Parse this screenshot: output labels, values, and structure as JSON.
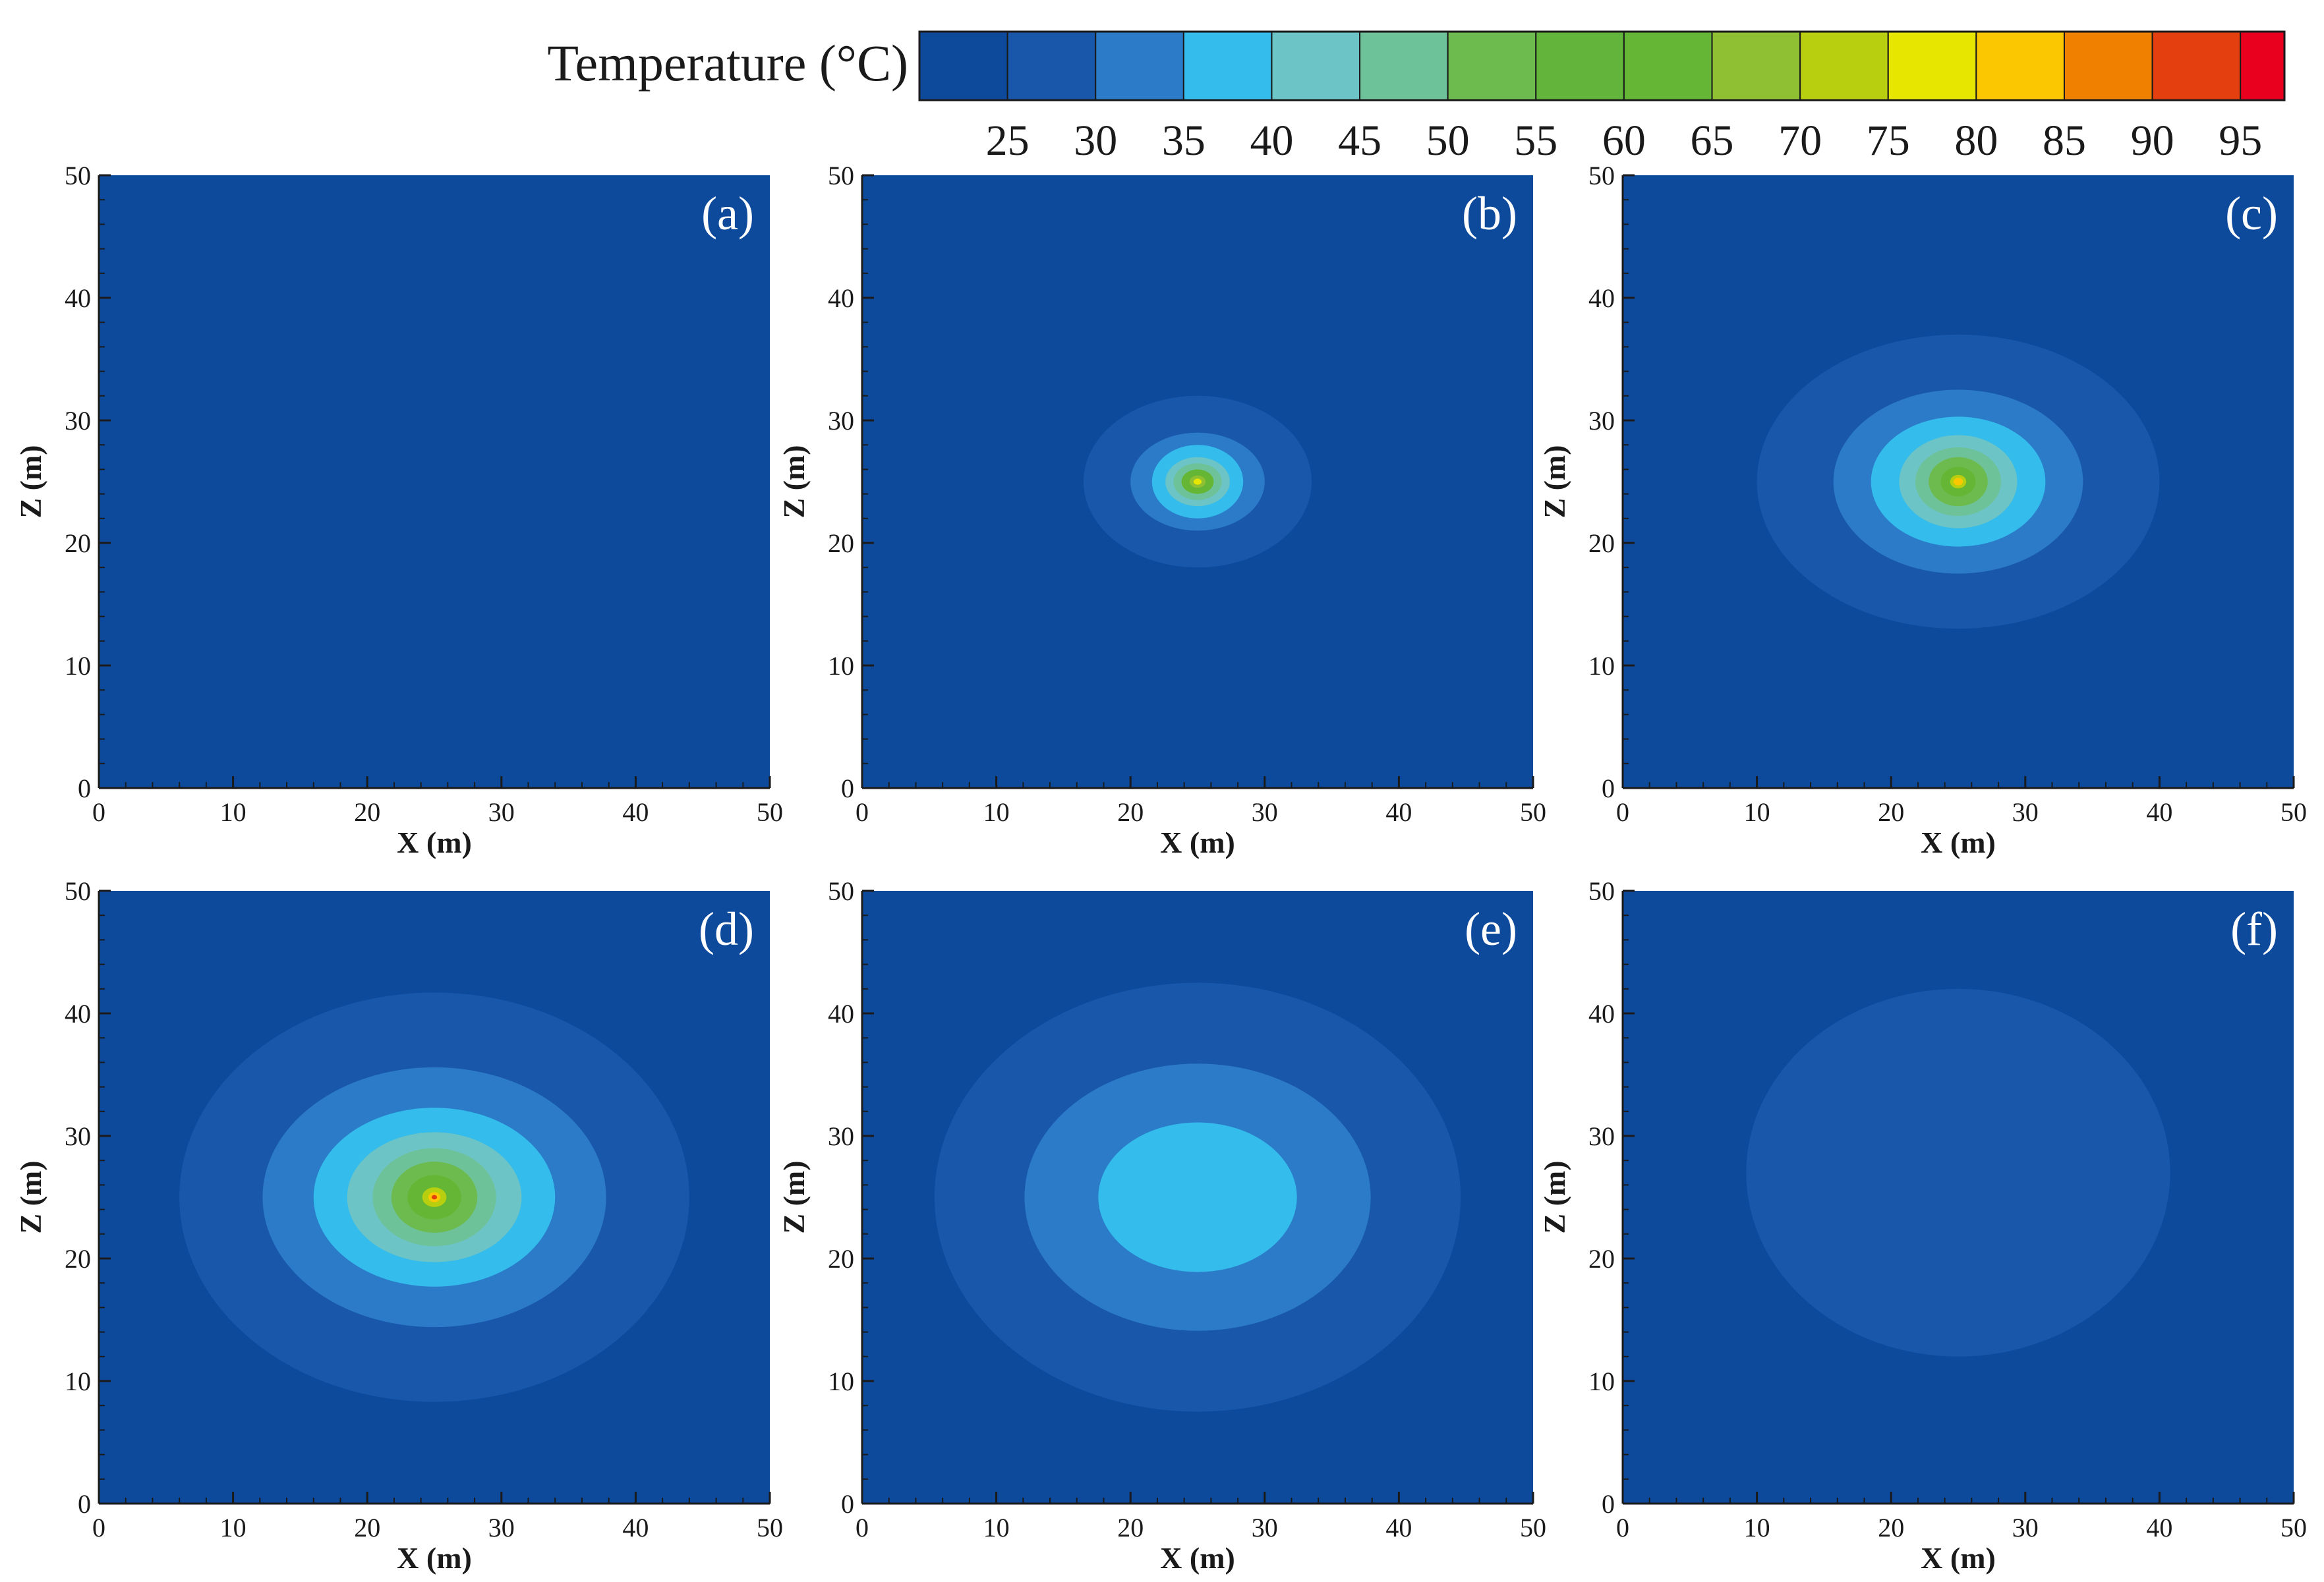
{
  "colorbar": {
    "title": "Temperature (°C)",
    "ticks": [
      25,
      30,
      35,
      40,
      45,
      50,
      55,
      60,
      65,
      70,
      75,
      80,
      85,
      90,
      95
    ],
    "bins": [
      {
        "low": 20,
        "high": 25,
        "color": "#0d4a9c"
      },
      {
        "low": 25,
        "high": 30,
        "color": "#1957ab"
      },
      {
        "low": 30,
        "high": 35,
        "color": "#2b7bc8"
      },
      {
        "low": 35,
        "high": 40,
        "color": "#33bcec"
      },
      {
        "low": 40,
        "high": 45,
        "color": "#6cc4c6"
      },
      {
        "low": 45,
        "high": 50,
        "color": "#6ec29a"
      },
      {
        "low": 50,
        "high": 55,
        "color": "#6dbb4e"
      },
      {
        "low": 55,
        "high": 60,
        "color": "#62b43a"
      },
      {
        "low": 60,
        "high": 65,
        "color": "#65b634"
      },
      {
        "low": 65,
        "high": 70,
        "color": "#8fc033"
      },
      {
        "low": 70,
        "high": 75,
        "color": "#b8cf10"
      },
      {
        "low": 75,
        "high": 80,
        "color": "#e6e600"
      },
      {
        "low": 80,
        "high": 85,
        "color": "#fbc700"
      },
      {
        "low": 85,
        "high": 90,
        "color": "#ef8000"
      },
      {
        "low": 90,
        "high": 95,
        "color": "#e4400f"
      },
      {
        "low": 95,
        "high": 100,
        "color": "#e8001e"
      }
    ]
  },
  "chart_data": [
    {
      "type": "heatmap",
      "label": "(a)",
      "xlabel": "X (m)",
      "ylabel": "Z (m)",
      "xlim": [
        0,
        50
      ],
      "ylim": [
        0,
        50
      ],
      "xticks": [
        0,
        10,
        20,
        30,
        40,
        50
      ],
      "yticks": [
        0,
        10,
        20,
        30,
        40,
        50
      ],
      "background_color": "#0d4a9c",
      "center": [
        25,
        25
      ],
      "contours": []
    },
    {
      "type": "heatmap",
      "label": "(b)",
      "xlabel": "X (m)",
      "ylabel": "Z (m)",
      "xlim": [
        0,
        50
      ],
      "ylim": [
        0,
        50
      ],
      "xticks": [
        0,
        10,
        20,
        30,
        40,
        50
      ],
      "yticks": [
        0,
        10,
        20,
        30,
        40,
        50
      ],
      "background_color": "#0d4a9c",
      "center": [
        25,
        25
      ],
      "contours": [
        {
          "rx": 8.5,
          "rz": 7,
          "color": "#1957ab"
        },
        {
          "rx": 5,
          "rz": 4,
          "color": "#2b7bc8"
        },
        {
          "rx": 3.4,
          "rz": 3,
          "color": "#33bcec"
        },
        {
          "rx": 2.4,
          "rz": 2,
          "color": "#6cc4c6"
        },
        {
          "rx": 1.8,
          "rz": 1.5,
          "color": "#6ec29a"
        },
        {
          "rx": 1.2,
          "rz": 1,
          "color": "#65b634"
        },
        {
          "rx": 0.6,
          "rz": 0.5,
          "color": "#8fc033"
        },
        {
          "rx": 0.3,
          "rz": 0.25,
          "color": "#e6e600"
        }
      ]
    },
    {
      "type": "heatmap",
      "label": "(c)",
      "xlabel": "X (m)",
      "ylabel": "Z (m)",
      "xlim": [
        0,
        50
      ],
      "ylim": [
        0,
        50
      ],
      "xticks": [
        0,
        10,
        20,
        30,
        40,
        50
      ],
      "yticks": [
        0,
        10,
        20,
        30,
        40,
        50
      ],
      "background_color": "#0d4a9c",
      "center": [
        25,
        25
      ],
      "contours": [
        {
          "rx": 15,
          "rz": 12,
          "color": "#1957ab"
        },
        {
          "rx": 9.3,
          "rz": 7.5,
          "color": "#2b7bc8"
        },
        {
          "rx": 6.5,
          "rz": 5.3,
          "color": "#33bcec"
        },
        {
          "rx": 4.4,
          "rz": 3.8,
          "color": "#6cc4c6"
        },
        {
          "rx": 3.2,
          "rz": 2.8,
          "color": "#6ec29a"
        },
        {
          "rx": 2.2,
          "rz": 2,
          "color": "#6dbb4e"
        },
        {
          "rx": 1.3,
          "rz": 1.2,
          "color": "#65b634"
        },
        {
          "rx": 0.6,
          "rz": 0.55,
          "color": "#b8cf10"
        },
        {
          "rx": 0.35,
          "rz": 0.3,
          "color": "#fbc700"
        }
      ]
    },
    {
      "type": "heatmap",
      "label": "(d)",
      "xlabel": "X (m)",
      "ylabel": "Z (m)",
      "xlim": [
        0,
        50
      ],
      "ylim": [
        0,
        50
      ],
      "xticks": [
        0,
        10,
        20,
        30,
        40,
        50
      ],
      "yticks": [
        0,
        10,
        20,
        30,
        40,
        50
      ],
      "background_color": "#0d4a9c",
      "center": [
        25,
        25
      ],
      "contours": [
        {
          "rx": 19,
          "rz": 16.7,
          "color": "#1957ab"
        },
        {
          "rx": 12.8,
          "rz": 10.6,
          "color": "#2b7bc8"
        },
        {
          "rx": 9,
          "rz": 7.3,
          "color": "#33bcec"
        },
        {
          "rx": 6.5,
          "rz": 5.3,
          "color": "#6cc4c6"
        },
        {
          "rx": 4.6,
          "rz": 4,
          "color": "#6ec29a"
        },
        {
          "rx": 3.2,
          "rz": 2.9,
          "color": "#6dbb4e"
        },
        {
          "rx": 2,
          "rz": 1.8,
          "color": "#65b634"
        },
        {
          "rx": 0.9,
          "rz": 0.8,
          "color": "#b8cf10"
        },
        {
          "rx": 0.45,
          "rz": 0.4,
          "color": "#fbc700"
        },
        {
          "rx": 0.2,
          "rz": 0.18,
          "color": "#e4400f"
        }
      ]
    },
    {
      "type": "heatmap",
      "label": "(e)",
      "xlabel": "X (m)",
      "ylabel": "Z (m)",
      "xlim": [
        0,
        50
      ],
      "ylim": [
        0,
        50
      ],
      "xticks": [
        0,
        10,
        20,
        30,
        40,
        50
      ],
      "yticks": [
        0,
        10,
        20,
        30,
        40,
        50
      ],
      "background_color": "#0d4a9c",
      "center": [
        25,
        25
      ],
      "contours": [
        {
          "rx": 19.6,
          "rz": 17.5,
          "color": "#1957ab"
        },
        {
          "rx": 12.9,
          "rz": 10.9,
          "color": "#2b7bc8"
        },
        {
          "rx": 7.4,
          "rz": 6.1,
          "color": "#33bcec"
        }
      ]
    },
    {
      "type": "heatmap",
      "label": "(f)",
      "xlabel": "X (m)",
      "ylabel": "Z (m)",
      "xlim": [
        0,
        50
      ],
      "ylim": [
        0,
        50
      ],
      "xticks": [
        0,
        10,
        20,
        30,
        40,
        50
      ],
      "yticks": [
        0,
        10,
        20,
        30,
        40,
        50
      ],
      "background_color": "#0d4a9c",
      "center": [
        25,
        27
      ],
      "contours": [
        {
          "rx": 15.8,
          "rz": 15,
          "color": "#1957ab"
        }
      ]
    }
  ]
}
